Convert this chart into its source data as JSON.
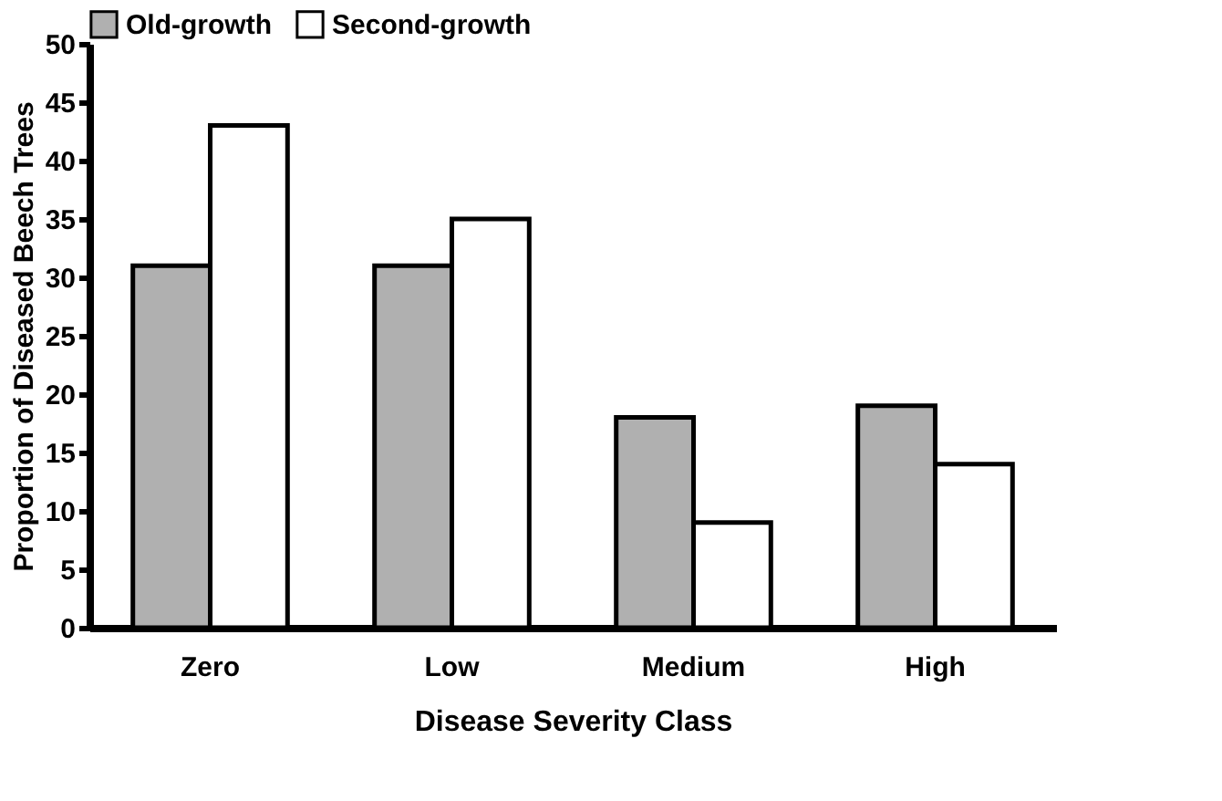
{
  "chart_data": {
    "type": "bar",
    "xlabel": "Disease Severity Class",
    "ylabel": "Proportion of Diseased Beech Trees",
    "categories": [
      "Zero",
      "Low",
      "Medium",
      "High"
    ],
    "series": [
      {
        "name": "Old-growth",
        "color": "#b0b0b0",
        "values": [
          31,
          31,
          18,
          19
        ]
      },
      {
        "name": "Second-growth",
        "color": "#ffffff",
        "values": [
          43,
          35,
          9,
          14
        ]
      }
    ],
    "ylim": [
      0,
      50
    ],
    "yticks": [
      0,
      5,
      10,
      15,
      20,
      25,
      30,
      35,
      40,
      45,
      50
    ],
    "grid": false,
    "legend": "top"
  }
}
